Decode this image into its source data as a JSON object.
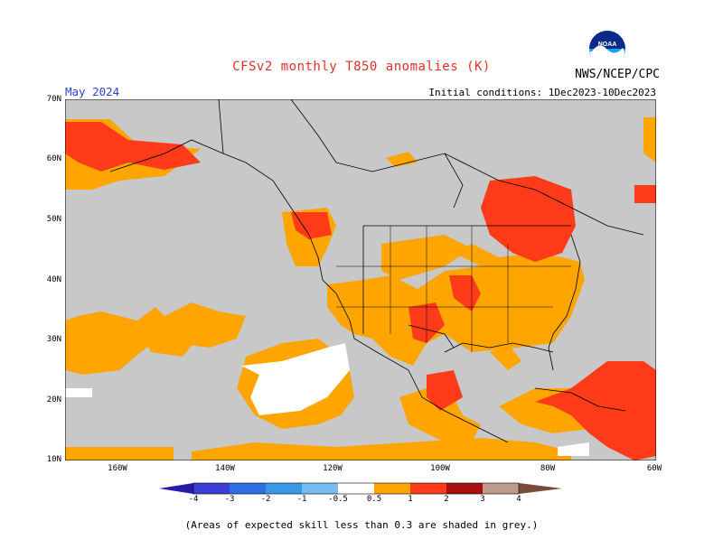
{
  "header": {
    "title": "CFSv2 monthly T850 anomalies (K)",
    "month": "May 2024",
    "initial_conditions": "Initial conditions: 1Dec2023-10Dec2023",
    "agency": "NWS/NCEP/CPC",
    "logo_text": "NOAA"
  },
  "map": {
    "region": "North America and adjacent Pacific / Atlantic",
    "lat_labels": [
      "70N",
      "60N",
      "50N",
      "40N",
      "30N",
      "20N",
      "10N"
    ],
    "lon_labels": [
      "160W",
      "140W",
      "120W",
      "100W",
      "80W",
      "60W"
    ],
    "lat_range": [
      10,
      70
    ],
    "lon_range": [
      -170,
      -60
    ],
    "grey_meaning": "expected skill less than 0.3",
    "colors": {
      "grey": "#c8c8c8",
      "white": "#ffffff",
      "orange": "#ffa500",
      "red": "#ff3b1a",
      "coast": "#000000"
    }
  },
  "colorbar": {
    "labels": [
      "-4",
      "-3",
      "-2",
      "-1",
      "-0.5",
      "0.5",
      "1",
      "2",
      "3",
      "4"
    ],
    "colors": [
      "#2a18a8",
      "#3b3ed6",
      "#2f6ee0",
      "#3a97e8",
      "#78bdf2",
      "#ffffff",
      "#ffa500",
      "#ff3b1a",
      "#a8100e",
      "#c09a8c",
      "#7a4a3a"
    ]
  },
  "footer": {
    "note": "(Areas of expected skill less than 0.3 are shaded in grey.)"
  }
}
